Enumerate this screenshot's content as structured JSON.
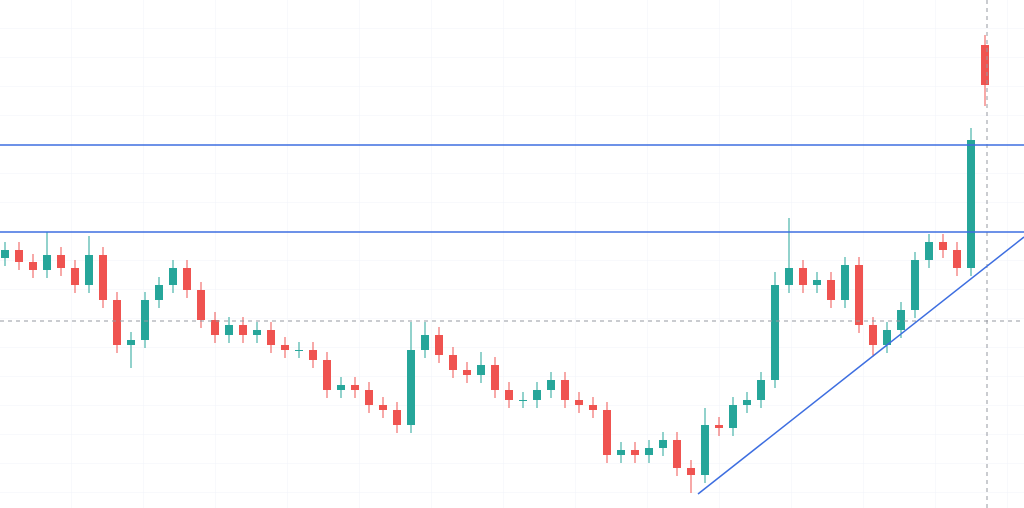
{
  "chart_data": {
    "type": "candlestick",
    "categories": [
      null,
      null,
      null,
      null,
      null,
      null,
      null,
      null,
      null,
      null,
      null,
      null,
      null,
      null,
      null,
      null,
      null,
      null,
      null,
      null,
      null,
      null,
      null,
      null,
      null,
      null,
      null,
      null,
      null,
      null,
      null,
      null,
      null,
      null,
      null,
      null,
      null,
      null,
      null,
      null,
      null,
      null,
      null,
      null,
      null,
      null,
      null,
      null,
      null,
      null,
      null,
      null,
      null,
      null,
      null,
      null,
      null,
      null,
      null,
      null,
      null,
      null,
      null,
      null,
      null,
      null,
      null,
      null,
      null,
      null,
      null
    ],
    "open": [
      125,
      129,
      123,
      119,
      126.5,
      120,
      111.5,
      126.5,
      104,
      81.5,
      84,
      104,
      111.5,
      120,
      109,
      94,
      86.5,
      91.5,
      86.5,
      89,
      81.5,
      79,
      79,
      74,
      59,
      61.5,
      59,
      51.5,
      49,
      41.5,
      79,
      86.5,
      76.5,
      69,
      66.5,
      71.5,
      59,
      54,
      54,
      59,
      64,
      54,
      51.5,
      49,
      26.5,
      29,
      26.5,
      30,
      34,
      20,
      16.5,
      41.5,
      40,
      51.5,
      54,
      64,
      111.5,
      120,
      111.5,
      114,
      104,
      121.5,
      91.5,
      81.5,
      89,
      99,
      124,
      133,
      129,
      120,
      231.5
    ],
    "high": [
      133,
      133,
      127,
      138,
      130.5,
      124,
      136,
      130.5,
      108,
      88,
      108,
      115.5,
      124,
      124,
      113,
      98,
      95.5,
      95.5,
      93,
      93,
      85.5,
      83,
      83,
      78,
      65.5,
      65.5,
      63,
      55.5,
      53,
      93,
      93,
      90.5,
      80.5,
      73,
      78,
      75.5,
      63,
      58,
      63,
      68,
      68,
      58,
      55.5,
      53,
      33,
      33,
      34,
      38,
      38,
      24,
      50,
      45.5,
      55.5,
      58,
      68,
      118,
      145,
      124,
      118,
      118,
      125.5,
      125.5,
      95.5,
      93,
      103,
      128,
      137,
      137,
      133,
      190,
      236.5
    ],
    "low": [
      121,
      119,
      115,
      115,
      116,
      107.5,
      107.5,
      100,
      77.5,
      70,
      80,
      100,
      107.5,
      105,
      90,
      82.5,
      82.5,
      82.5,
      82.5,
      77.5,
      75,
      75,
      70,
      55,
      55,
      55,
      47.5,
      45,
      37.5,
      37.5,
      75,
      72.5,
      65,
      62.5,
      62.5,
      55,
      50,
      50,
      50,
      55,
      50,
      47.5,
      45,
      22.5,
      22.5,
      22.5,
      22.5,
      26,
      16,
      7.5,
      12.5,
      36,
      36,
      47.5,
      50,
      60,
      107.5,
      107.5,
      107.5,
      100,
      100,
      87.5,
      75.5,
      77.5,
      85,
      95,
      120,
      125,
      116,
      116,
      201
    ],
    "close": [
      129,
      123,
      119,
      126.5,
      120,
      111.5,
      126.5,
      104,
      81.5,
      84,
      104,
      111.5,
      120,
      109,
      94,
      86.5,
      91.5,
      86.5,
      89,
      81.5,
      79,
      79,
      74,
      59,
      61.5,
      59,
      51.5,
      49,
      41.5,
      79,
      86.5,
      76.5,
      69,
      66.5,
      71.5,
      59,
      54,
      54,
      59,
      64,
      54,
      51.5,
      49,
      26.5,
      29,
      26.5,
      30,
      34,
      20,
      16.5,
      41.5,
      40,
      51.5,
      54,
      64,
      111.5,
      120,
      111.5,
      114,
      104,
      121.5,
      91.5,
      81.5,
      89,
      99,
      124,
      133,
      129,
      120,
      184,
      211.5
    ],
    "up_color": "#26a69a",
    "down_color": "#ef5350",
    "ylim": [
      0,
      254
    ],
    "grid": true
  }
}
